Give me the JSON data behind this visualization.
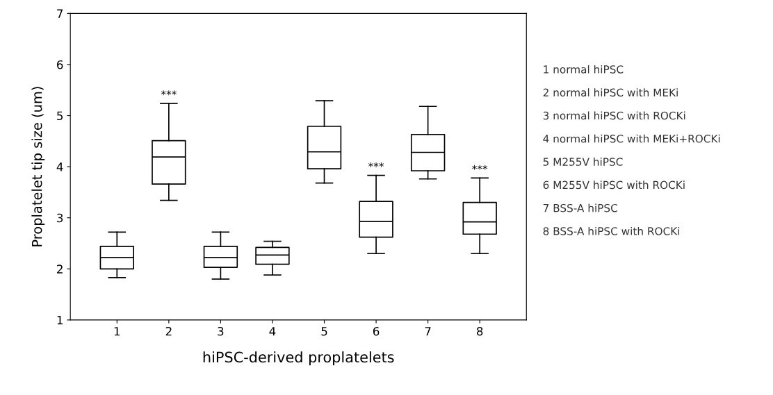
{
  "chart_data": {
    "type": "box",
    "xlabel": "hiPSC-derived proplatelets",
    "ylabel": "Proplatelet tip size (um)",
    "categories": [
      "1",
      "2",
      "3",
      "4",
      "5",
      "6",
      "7",
      "8"
    ],
    "boxes": [
      {
        "low": 1.83,
        "q1": 2.0,
        "median": 2.22,
        "q3": 2.44,
        "high": 2.72
      },
      {
        "low": 3.34,
        "q1": 3.66,
        "median": 4.19,
        "q3": 4.51,
        "high": 5.24
      },
      {
        "low": 1.8,
        "q1": 2.03,
        "median": 2.22,
        "q3": 2.44,
        "high": 2.72
      },
      {
        "low": 1.88,
        "q1": 2.09,
        "median": 2.27,
        "q3": 2.42,
        "high": 2.54
      },
      {
        "low": 3.68,
        "q1": 3.96,
        "median": 4.29,
        "q3": 4.79,
        "high": 5.29
      },
      {
        "low": 2.3,
        "q1": 2.62,
        "median": 2.93,
        "q3": 3.32,
        "high": 3.83
      },
      {
        "low": 3.76,
        "q1": 3.92,
        "median": 4.28,
        "q3": 4.63,
        "high": 5.18
      },
      {
        "low": 2.3,
        "q1": 2.68,
        "median": 2.92,
        "q3": 3.3,
        "high": 3.78
      }
    ],
    "color": "#000000",
    "ylim": [
      1,
      7
    ],
    "yticks": [
      1,
      2,
      3,
      4,
      5,
      6,
      7
    ],
    "grid": false,
    "annotations": [
      {
        "text": "***",
        "x": "2",
        "y": 5.24
      },
      {
        "text": "***",
        "x": "6",
        "y": 3.83
      },
      {
        "text": "***",
        "x": "8",
        "y": 3.78
      },
      "1 normal hiPSC",
      "2 normal hiPSC with MEKi",
      "3 normal hiPSC with ROCKi",
      "4 normal hiPSC with MEKi+ROCKi",
      "5 M255V hiPSC",
      "6 M255V hiPSC with ROCKi",
      "7 BSS-A hiPSC",
      "8 BSS-A hiPSC with ROCKi"
    ]
  }
}
